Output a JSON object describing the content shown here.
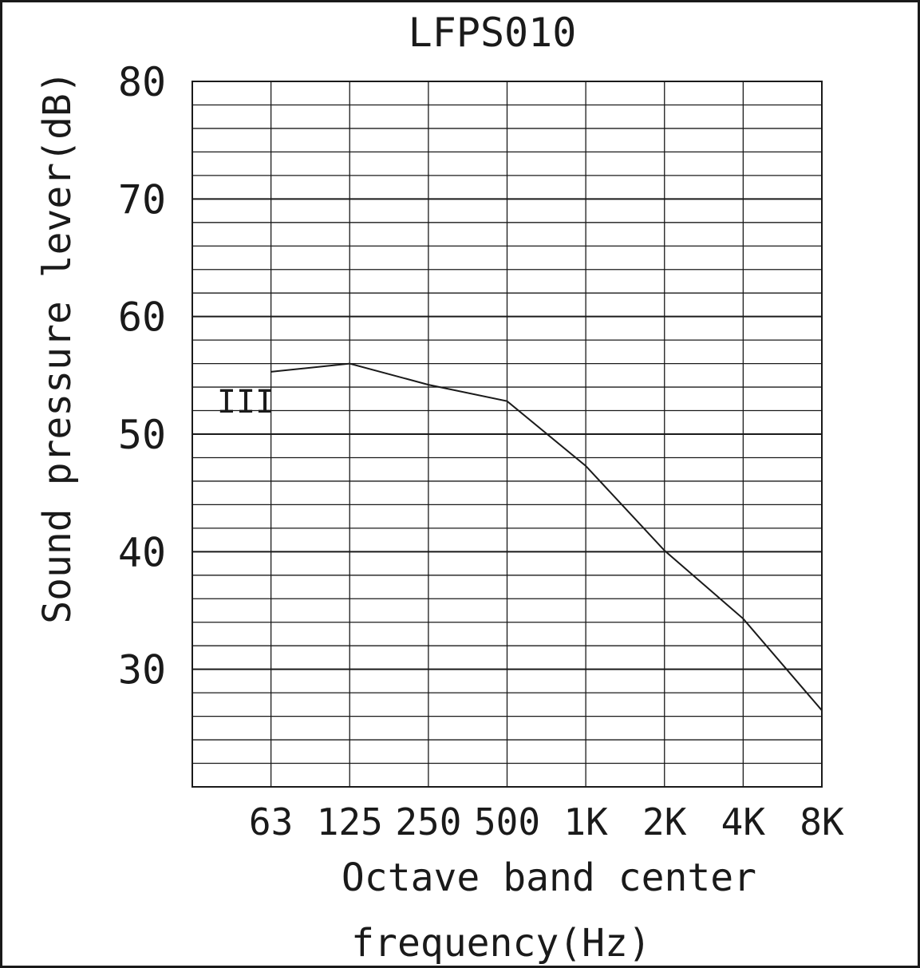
{
  "chart_data": {
    "type": "line",
    "title": "LFPS010",
    "ylabel": "Sound pressure lever(dB)",
    "xlabel_lines": [
      "Octave band center",
      "frequency(Hz)"
    ],
    "categories": [
      "63",
      "125",
      "250",
      "500",
      "1K",
      "2K",
      "4K",
      "8K"
    ],
    "y_ticks": [
      "30",
      "40",
      "50",
      "60",
      "70",
      "80"
    ],
    "ylim": [
      20,
      80
    ],
    "grid": true,
    "series": [
      {
        "name": "III",
        "x": [
          "63",
          "125",
          "250",
          "500",
          "1K",
          "2K",
          "4K",
          "8K"
        ],
        "values": [
          55.3,
          56.0,
          54.2,
          52.8,
          47.3,
          40.1,
          34.3,
          26.5
        ]
      }
    ]
  },
  "colors": {
    "line": "#1a1a1a",
    "grid": "#1a1a1a",
    "background": "#ffffff"
  }
}
